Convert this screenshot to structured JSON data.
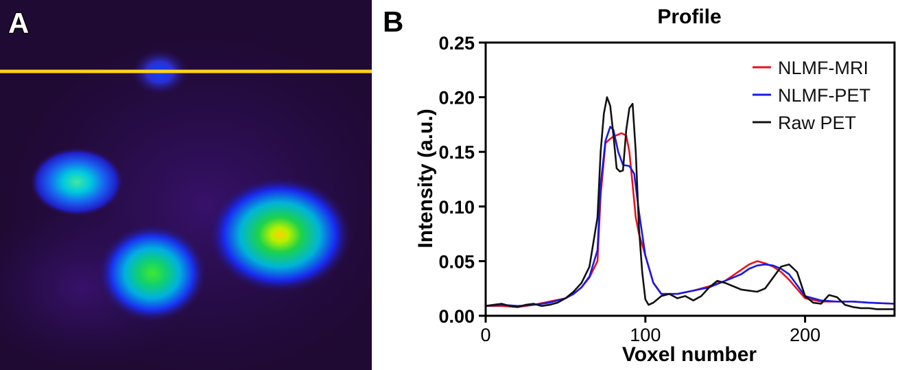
{
  "panel_a": {
    "label": "A",
    "colors": {
      "background": "#1f0a33",
      "profile_line": "#ffd21a",
      "label_fill": "#ffffff",
      "label_stroke": "#000000"
    },
    "hotspots": [
      {
        "name": "hotspot-top",
        "intensity": 0.2
      },
      {
        "name": "hotspot-left",
        "intensity": 0.4
      },
      {
        "name": "hotspot-bottom",
        "intensity": 0.55
      },
      {
        "name": "hotspot-right",
        "intensity": 0.85
      }
    ]
  },
  "panel_b": {
    "label": "B",
    "chart_data": {
      "type": "line",
      "title": "Profile",
      "xlabel": "Voxel number",
      "ylabel": "Intensity (a.u.)",
      "xlim": [
        0,
        256
      ],
      "ylim": [
        0,
        0.25
      ],
      "xticks": [
        0,
        100,
        200
      ],
      "xtick_labels": [
        "0",
        "100",
        "200"
      ],
      "yticks": [
        0,
        0.05,
        0.1,
        0.15,
        0.2,
        0.25
      ],
      "ytick_labels": [
        "0.00",
        "0.05",
        "0.10",
        "0.15",
        "0.20",
        "0.25"
      ],
      "grid": false,
      "legend_position": "top-right",
      "series": [
        {
          "name": "NLMF-MRI",
          "color": "#e8121a",
          "x": [
            0,
            10,
            20,
            30,
            40,
            50,
            55,
            60,
            65,
            70,
            72,
            75,
            78,
            80,
            85,
            88,
            90,
            92,
            94,
            96,
            100,
            105,
            110,
            120,
            130,
            140,
            150,
            160,
            165,
            170,
            175,
            180,
            185,
            190,
            200,
            210,
            220,
            230,
            240,
            256
          ],
          "y": [
            0.009,
            0.009,
            0.008,
            0.01,
            0.013,
            0.016,
            0.02,
            0.026,
            0.035,
            0.05,
            0.11,
            0.158,
            0.162,
            0.164,
            0.167,
            0.165,
            0.15,
            0.12,
            0.09,
            0.075,
            0.055,
            0.03,
            0.02,
            0.02,
            0.023,
            0.027,
            0.032,
            0.042,
            0.047,
            0.05,
            0.048,
            0.045,
            0.04,
            0.033,
            0.016,
            0.013,
            0.013,
            0.013,
            0.012,
            0.011
          ]
        },
        {
          "name": "NLMF-PET",
          "color": "#1a1ae6",
          "x": [
            0,
            10,
            20,
            30,
            40,
            50,
            55,
            60,
            65,
            70,
            72,
            75,
            78,
            80,
            83,
            86,
            90,
            93,
            96,
            100,
            105,
            110,
            120,
            130,
            140,
            150,
            160,
            165,
            170,
            175,
            180,
            185,
            190,
            200,
            210,
            220,
            230,
            240,
            256
          ],
          "y": [
            0.009,
            0.01,
            0.009,
            0.01,
            0.012,
            0.016,
            0.02,
            0.026,
            0.036,
            0.06,
            0.12,
            0.16,
            0.173,
            0.17,
            0.15,
            0.138,
            0.137,
            0.13,
            0.095,
            0.055,
            0.03,
            0.02,
            0.02,
            0.023,
            0.026,
            0.032,
            0.038,
            0.043,
            0.046,
            0.047,
            0.046,
            0.043,
            0.038,
            0.018,
            0.014,
            0.013,
            0.013,
            0.012,
            0.011
          ]
        },
        {
          "name": "Raw PET",
          "color": "#111111",
          "x": [
            0,
            5,
            10,
            15,
            20,
            25,
            30,
            35,
            40,
            45,
            50,
            55,
            60,
            65,
            70,
            72,
            74,
            76,
            78,
            80,
            82,
            84,
            86,
            88,
            90,
            92,
            94,
            96,
            98,
            100,
            102,
            105,
            110,
            115,
            120,
            125,
            130,
            135,
            140,
            145,
            150,
            155,
            160,
            165,
            170,
            175,
            180,
            185,
            190,
            195,
            200,
            205,
            210,
            215,
            220,
            225,
            230,
            235,
            240,
            245,
            250,
            256
          ],
          "y": [
            0.009,
            0.01,
            0.011,
            0.009,
            0.008,
            0.01,
            0.011,
            0.009,
            0.01,
            0.012,
            0.016,
            0.022,
            0.03,
            0.045,
            0.09,
            0.15,
            0.185,
            0.2,
            0.192,
            0.165,
            0.135,
            0.132,
            0.133,
            0.17,
            0.19,
            0.194,
            0.15,
            0.08,
            0.04,
            0.015,
            0.01,
            0.012,
            0.018,
            0.02,
            0.016,
            0.018,
            0.014,
            0.018,
            0.026,
            0.032,
            0.03,
            0.027,
            0.024,
            0.023,
            0.022,
            0.025,
            0.035,
            0.045,
            0.047,
            0.04,
            0.018,
            0.012,
            0.011,
            0.019,
            0.017,
            0.01,
            0.008,
            0.007,
            0.007,
            0.006,
            0.006,
            0.006
          ]
        }
      ]
    }
  }
}
